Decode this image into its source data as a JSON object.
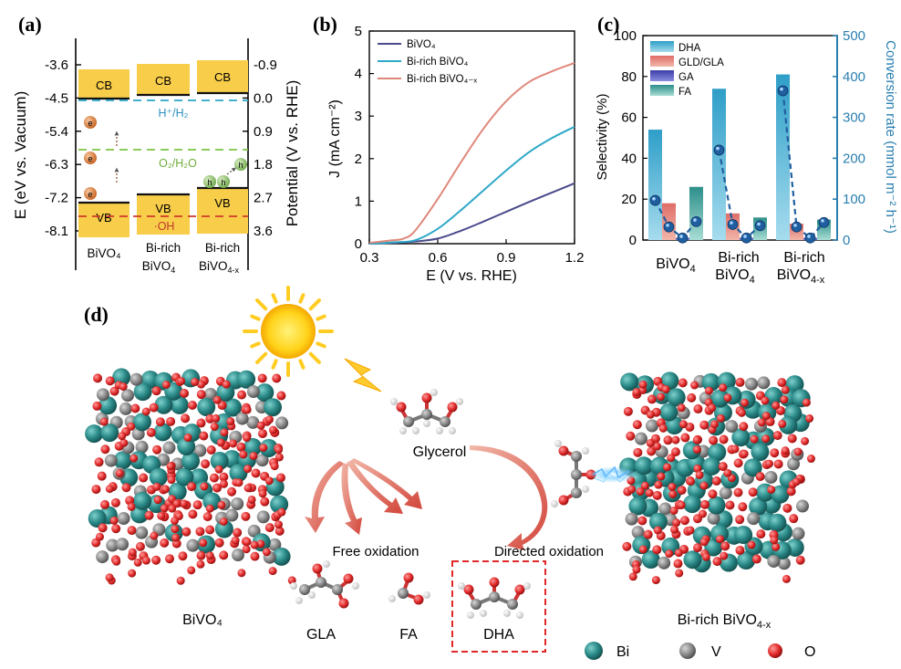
{
  "panel_a": {
    "label": "(a)",
    "left_axis_label": "E (eV vs. Vacuum)",
    "right_axis_label": "Potential (V vs. RHE)",
    "left_ticks": [
      "-3.6",
      "-4.5",
      "-5.4",
      "-6.3",
      "-7.2",
      "-8.1"
    ],
    "right_ticks": [
      "-0.9",
      "0.0",
      "0.9",
      "1.8",
      "2.7",
      "3.6"
    ],
    "cb_label": "CB",
    "vb_label": "VB",
    "h_ref": "H⁺/H₂",
    "o_ref": "O₂/H₂O",
    "oh_ref": "·OH",
    "electron": "e",
    "hole": "h",
    "samples": [
      {
        "line1": "BiVO₄",
        "line2": "",
        "sub": ""
      },
      {
        "line1": "Bi-rich",
        "line2": "BiVO",
        "sub": "4"
      },
      {
        "line1": "Bi-rich",
        "line2": "BiVO",
        "sub": "4-x"
      }
    ],
    "colors": {
      "band": "#f8cd4a",
      "h_line": "#2aa4c8",
      "o_line": "#7cc242",
      "oh_line": "#d0392b",
      "electron": "#e27b3c",
      "hole": "#8cc265"
    }
  },
  "panel_b": {
    "label": "(b)",
    "chart_data": {
      "type": "line",
      "xlabel": "E (V vs. RHE)",
      "ylabel": "J (mA cm⁻²)",
      "xlim": [
        0.3,
        1.2
      ],
      "ylim": [
        0,
        5
      ],
      "xticks": [
        "0.3",
        "0.6",
        "0.9",
        "1.2"
      ],
      "yticks": [
        "0",
        "1",
        "2",
        "3",
        "4",
        "5"
      ],
      "series": [
        {
          "name": "BiVO₄",
          "color": "#4a4a8c",
          "x": [
            0.3,
            0.4,
            0.5,
            0.6,
            0.7,
            0.8,
            0.9,
            1.0,
            1.1,
            1.2
          ],
          "y": [
            0.0,
            0.02,
            0.05,
            0.12,
            0.3,
            0.52,
            0.75,
            0.98,
            1.2,
            1.42
          ]
        },
        {
          "name": "Bi-rich BiVO₄",
          "color": "#2ea8c8",
          "x": [
            0.3,
            0.4,
            0.5,
            0.6,
            0.7,
            0.8,
            0.9,
            1.0,
            1.1,
            1.2
          ],
          "y": [
            0.0,
            0.03,
            0.08,
            0.35,
            0.78,
            1.25,
            1.72,
            2.15,
            2.48,
            2.75
          ]
        },
        {
          "name": "Bi-rich BiVO₄₋ₓ",
          "color": "#e0877a",
          "x": [
            0.3,
            0.4,
            0.45,
            0.5,
            0.6,
            0.7,
            0.8,
            0.9,
            1.0,
            1.1,
            1.2
          ],
          "y": [
            0.02,
            0.08,
            0.12,
            0.3,
            1.05,
            1.9,
            2.7,
            3.35,
            3.8,
            4.05,
            4.25
          ]
        }
      ]
    }
  },
  "panel_c": {
    "label": "(c)",
    "chart_data": {
      "type": "bar",
      "categories": [
        "BiVO₄",
        "Bi-rich BiVO₄",
        "Bi-rich BiVO₄₋ₓ"
      ],
      "category_lines": [
        [
          "BiVO",
          "4",
          ""
        ],
        [
          "Bi-rich",
          "BiVO",
          "4"
        ],
        [
          "Bi-rich",
          "BiVO",
          "4-x"
        ]
      ],
      "ylabel": "Selectivity (%)",
      "y2label": "Conversion rate (mmol m⁻² h⁻¹)",
      "ylim": [
        0,
        100
      ],
      "y2lim": [
        0,
        500
      ],
      "yticks": [
        "0",
        "20",
        "40",
        "60",
        "80",
        "100"
      ],
      "y2ticks": [
        "0",
        "100",
        "200",
        "300",
        "400",
        "500"
      ],
      "series": [
        {
          "name": "DHA",
          "color": "#5fbcd8",
          "values": [
            54,
            74,
            81
          ]
        },
        {
          "name": "GLD/GLA",
          "color": "#e7877f",
          "values": [
            18,
            13,
            8
          ]
        },
        {
          "name": "GA",
          "color": "#5b5ec2",
          "values": [
            1,
            1,
            1
          ]
        },
        {
          "name": "FA",
          "color": "#6fc0b6",
          "values": [
            26,
            11,
            10
          ]
        }
      ],
      "conversion_points": [
        [
          97,
          32,
          5,
          45
        ],
        [
          220,
          38,
          5,
          35
        ],
        [
          365,
          32,
          5,
          43
        ]
      ]
    }
  },
  "panel_d": {
    "label": "(d)",
    "glycerol": "Glycerol",
    "free_oxidation": "Free oxidation",
    "directed_oxidation": "Directed oxidation",
    "left_sample": "BiVO₄",
    "right_sample": "Bi-rich BiVO",
    "right_sample_sub": "4-x",
    "products": [
      "GLA",
      "FA",
      "DHA"
    ],
    "legend": [
      {
        "label": "Bi",
        "color": "#2a8a88"
      },
      {
        "label": "V",
        "color": "#8a8a8a"
      },
      {
        "label": "O",
        "color": "#e02828"
      }
    ]
  }
}
